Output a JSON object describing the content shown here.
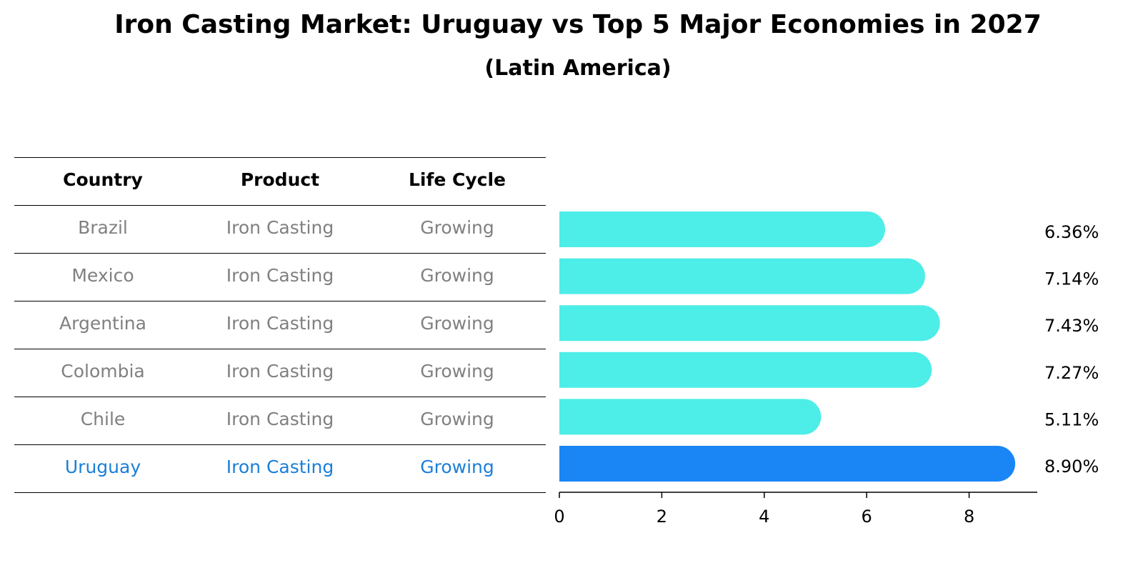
{
  "title": "Iron Casting Market: Uruguay vs Top 5 Major Economies in 2027",
  "subtitle": "(Latin America)",
  "table": {
    "headers": [
      "Country",
      "Product",
      "Life Cycle"
    ],
    "rows": [
      {
        "country": "Brazil",
        "product": "Iron Casting",
        "life_cycle": "Growing"
      },
      {
        "country": "Mexico",
        "product": "Iron Casting",
        "life_cycle": "Growing"
      },
      {
        "country": "Argentina",
        "product": "Iron Casting",
        "life_cycle": "Growing"
      },
      {
        "country": "Colombia",
        "product": "Iron Casting",
        "life_cycle": "Growing"
      },
      {
        "country": "Chile",
        "product": "Iron Casting",
        "life_cycle": "Growing"
      },
      {
        "country": "Uruguay",
        "product": "Iron Casting",
        "life_cycle": "Growing"
      }
    ]
  },
  "chart_data": {
    "type": "bar",
    "orientation": "horizontal",
    "categories": [
      "Brazil",
      "Mexico",
      "Argentina",
      "Colombia",
      "Chile",
      "Uruguay"
    ],
    "values": [
      6.36,
      7.14,
      7.43,
      7.27,
      5.11,
      8.9
    ],
    "value_labels": [
      "6.36%",
      "7.14%",
      "7.43%",
      "7.27%",
      "5.11%",
      "8.90%"
    ],
    "highlight": "Uruguay",
    "xlim": [
      0,
      9.35
    ],
    "xticks": [
      0,
      2,
      4,
      6,
      8
    ],
    "colors": {
      "default": "#4dede8",
      "highlight": "#1a85f5",
      "highlight_text": "#1a7fd9",
      "muted_text": "#808080"
    }
  }
}
